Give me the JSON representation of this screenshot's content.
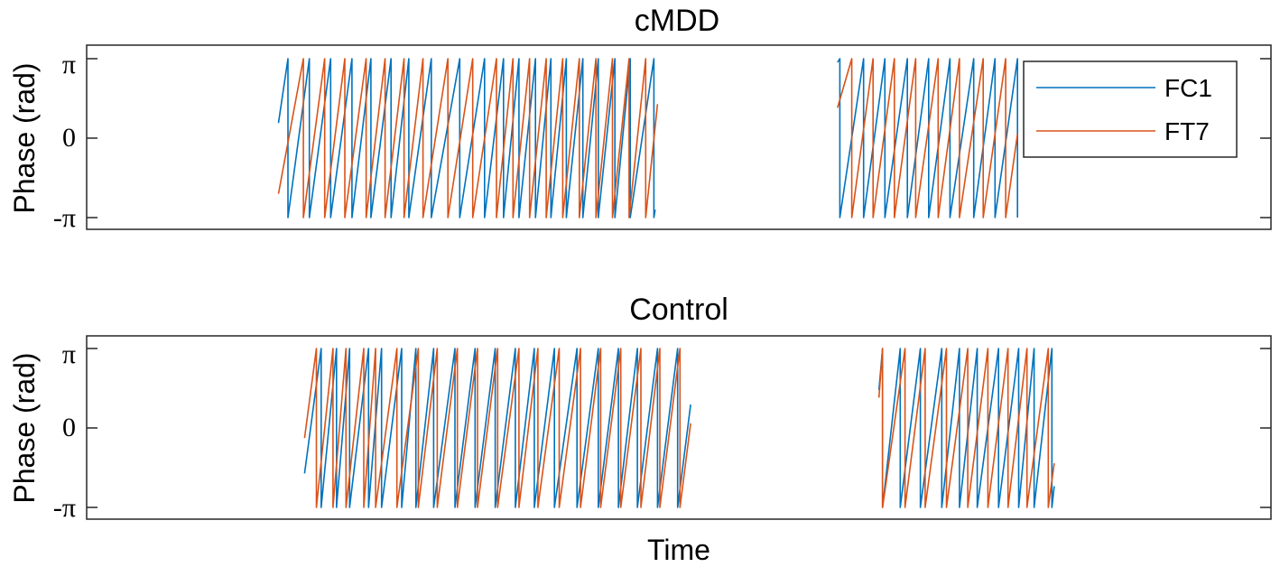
{
  "colors": {
    "FC1": "#0072BD",
    "FT7": "#D95319",
    "axes": "#262626"
  },
  "chart_data": [
    {
      "type": "line",
      "title": "cMDD",
      "xlabel": "",
      "ylabel": "Phase (rad)",
      "ylim": [
        -3.1416,
        3.1416
      ],
      "xlim": [
        0,
        1000
      ],
      "yticks": [
        -3.1416,
        0,
        3.1416
      ],
      "ytick_labels": [
        "-π",
        "0",
        "π"
      ],
      "grid": false,
      "legend": "top-right",
      "series": [
        {
          "name": "FC1",
          "segments": [
            {
              "start": 162,
              "end": 480,
              "phase0": 0.6,
              "wraps": [
                170,
                188,
                206,
                224,
                240,
                257,
                272,
                291,
                315,
                336,
                352,
                365,
                379,
                392,
                405,
                419,
                432,
                446,
                459,
                479
              ]
            },
            {
              "start": 634,
              "end": 786,
              "phase0": 3.0,
              "wraps": [
                636,
                656,
                674,
                693,
                711,
                729,
                749,
                767,
                786
              ]
            }
          ]
        },
        {
          "name": "FT7",
          "segments": [
            {
              "start": 162,
              "end": 482,
              "phase0": -2.2,
              "wraps": [
                183,
                201,
                218,
                236,
                252,
                268,
                284,
                305,
                326,
                346,
                360,
                374,
                388,
                402,
                416,
                430,
                444,
                458,
                472
              ]
            },
            {
              "start": 634,
              "end": 786,
              "phase0": 1.2,
              "wraps": [
                646,
                664,
                682,
                700,
                719,
                737,
                757,
                776
              ]
            }
          ]
        }
      ]
    },
    {
      "type": "line",
      "title": "Control",
      "xlabel": "Time",
      "ylabel": "Phase (rad)",
      "ylim": [
        -3.1416,
        3.1416
      ],
      "xlim": [
        0,
        1000
      ],
      "yticks": [
        -3.1416,
        0,
        3.1416
      ],
      "ytick_labels": [
        "-π",
        "0",
        "π"
      ],
      "grid": false,
      "series": [
        {
          "name": "FC1",
          "segments": [
            {
              "start": 184,
              "end": 510,
              "phase0": -1.8,
              "wraps": [
                198,
                211,
                222,
                238,
                249,
                266,
                278,
                293,
                311,
                328,
                345,
                362,
                378,
                395,
                414,
                432,
                449,
                465,
                482,
                499
              ]
            },
            {
              "start": 669,
              "end": 817,
              "phase0": 1.5,
              "wraps": [
                672,
                687,
                704,
                722,
                737,
                752,
                770,
                787,
                800,
                815
              ]
            }
          ]
        },
        {
          "name": "FT7",
          "segments": [
            {
              "start": 184,
              "end": 510,
              "phase0": -0.4,
              "wraps": [
                194,
                208,
                219,
                234,
                244,
                262,
                280,
                296,
                313,
                330,
                347,
                365,
                381,
                399,
                417,
                434,
                451,
                468,
                484,
                501
              ]
            },
            {
              "start": 669,
              "end": 817,
              "phase0": 1.2,
              "wraps": [
                672,
                691,
                708,
                726,
                744,
                761,
                778,
                794,
                812
              ]
            }
          ]
        }
      ]
    }
  ]
}
